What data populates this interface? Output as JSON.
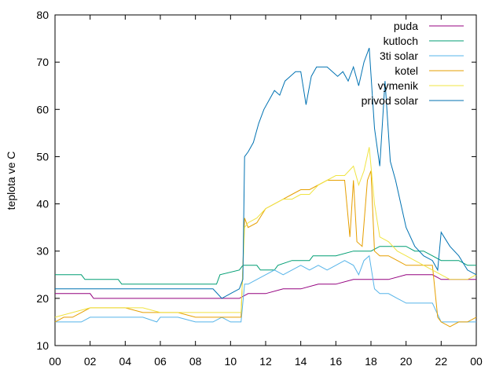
{
  "chart_data": {
    "type": "line",
    "title": "",
    "xlabel": "",
    "ylabel": "teplota ve C",
    "xlim": [
      0,
      24
    ],
    "ylim": [
      10,
      80
    ],
    "x_ticks": [
      "00",
      "02",
      "04",
      "06",
      "08",
      "10",
      "12",
      "14",
      "16",
      "18",
      "20",
      "22",
      "00"
    ],
    "y_ticks": [
      10,
      20,
      30,
      40,
      50,
      60,
      70,
      80
    ],
    "grid": false,
    "legend_position": "top-right",
    "series": [
      {
        "name": "puda",
        "color": "#94007f",
        "x": [
          0,
          1,
          2,
          2.2,
          3.5,
          3.7,
          9.5,
          10,
          10.5,
          11,
          12,
          13,
          14,
          15,
          16,
          17,
          18,
          19,
          20,
          21,
          21.5,
          22,
          22.5,
          23,
          24
        ],
        "y": [
          21,
          21,
          21,
          20,
          20,
          20,
          20,
          20,
          20,
          21,
          21,
          22,
          22,
          23,
          23,
          24,
          24,
          24,
          25,
          25,
          25,
          24,
          24,
          24,
          24
        ]
      },
      {
        "name": "kutloch",
        "color": "#009e73",
        "x": [
          0,
          1.5,
          1.7,
          2.3,
          2.5,
          3.6,
          3.8,
          5.8,
          6,
          9.2,
          9.4,
          10.5,
          10.7,
          11.5,
          11.7,
          12.5,
          12.7,
          13.5,
          14.5,
          14.7,
          16,
          17,
          18,
          18.5,
          19,
          19.5,
          20,
          20.5,
          21,
          21.5,
          22,
          22.5,
          23,
          23.5,
          24
        ],
        "y": [
          25,
          25,
          24,
          24,
          24,
          24,
          23,
          23,
          23,
          23,
          25,
          26,
          27,
          27,
          26,
          26,
          27,
          28,
          28,
          29,
          29,
          30,
          30,
          31,
          31,
          31,
          31,
          30,
          30,
          29,
          28,
          28,
          28,
          27,
          27
        ]
      },
      {
        "name": "3ti solar",
        "color": "#56b4e9",
        "x": [
          0,
          0.5,
          1,
          1.5,
          2,
          3,
          4,
          5,
          5.8,
          6,
          6.2,
          7,
          8,
          9,
          9.5,
          10,
          10.6,
          10.8,
          11,
          11.5,
          12,
          12.5,
          13,
          13.5,
          14,
          14.5,
          15,
          15.5,
          16,
          16.5,
          17,
          17.3,
          17.6,
          17.9,
          18.2,
          18.5,
          19,
          19.5,
          20,
          20.5,
          21,
          21.5,
          22,
          22.5,
          23,
          23.5,
          24
        ],
        "y": [
          15,
          15,
          15,
          15,
          16,
          16,
          16,
          16,
          15,
          16,
          16,
          16,
          15,
          15,
          16,
          15,
          15,
          23,
          23,
          24,
          25,
          26,
          25,
          26,
          27,
          26,
          27,
          26,
          27,
          28,
          27,
          25,
          28,
          29,
          22,
          21,
          21,
          20,
          19,
          19,
          19,
          19,
          15,
          15,
          15,
          15,
          15
        ]
      },
      {
        "name": "kotel",
        "color": "#e69f00",
        "x": [
          0,
          0.5,
          1,
          1.5,
          2,
          3,
          4,
          5,
          6,
          7,
          8,
          9,
          10,
          10.6,
          10.8,
          11,
          11.5,
          12,
          12.5,
          13,
          13.5,
          14,
          14.5,
          15,
          15.5,
          16,
          16.5,
          16.8,
          17,
          17.2,
          17.5,
          17.8,
          18,
          18.2,
          18.5,
          19,
          19.5,
          20,
          20.5,
          21,
          21.5,
          21.8,
          22,
          22.5,
          23,
          23.5,
          24
        ],
        "y": [
          15,
          16,
          16,
          17,
          18,
          18,
          18,
          17,
          17,
          17,
          16,
          16,
          16,
          16,
          37,
          35,
          36,
          39,
          40,
          41,
          42,
          43,
          43,
          44,
          45,
          45,
          45,
          33,
          45,
          32,
          31,
          45,
          47,
          30,
          29,
          29,
          28,
          27,
          27,
          27,
          27,
          16,
          15,
          14,
          15,
          15,
          16
        ]
      },
      {
        "name": "vymenik",
        "color": "#f0e442",
        "x": [
          0,
          1,
          2,
          3,
          4,
          5,
          6,
          7,
          8,
          9,
          10,
          10.6,
          10.8,
          11,
          11.5,
          12,
          12.5,
          13,
          13.5,
          14,
          14.5,
          15,
          15.5,
          16,
          16.5,
          17,
          17.3,
          17.6,
          17.9,
          18.2,
          18.5,
          19,
          19.5,
          20,
          20.5,
          21,
          21.5,
          22,
          22.5,
          23,
          23.5,
          24
        ],
        "y": [
          16,
          17,
          18,
          18,
          18,
          18,
          17,
          17,
          17,
          17,
          17,
          17,
          35,
          36,
          37,
          39,
          40,
          41,
          41,
          42,
          42,
          44,
          45,
          46,
          46,
          48,
          44,
          47,
          52,
          40,
          33,
          32,
          30,
          29,
          28,
          27,
          26,
          25,
          24,
          24,
          24,
          25
        ]
      },
      {
        "name": "privod solar",
        "color": "#0072b2",
        "x": [
          0,
          1,
          2,
          3,
          4,
          5,
          6,
          7,
          8,
          9,
          9.5,
          10,
          10.5,
          10.7,
          10.8,
          11,
          11.3,
          11.6,
          11.9,
          12.2,
          12.5,
          12.8,
          13.1,
          13.4,
          13.7,
          14,
          14.3,
          14.6,
          14.9,
          15.2,
          15.5,
          15.8,
          16.1,
          16.4,
          16.7,
          17,
          17.3,
          17.6,
          17.9,
          18.2,
          18.5,
          18.8,
          19.1,
          19.4,
          19.7,
          20,
          20.5,
          21,
          21.5,
          21.8,
          22,
          22.5,
          23,
          23.5,
          24
        ],
        "y": [
          22,
          22,
          22,
          22,
          22,
          22,
          22,
          22,
          22,
          22,
          20,
          21,
          22,
          24,
          50,
          51,
          53,
          57,
          60,
          62,
          64,
          63,
          66,
          67,
          68,
          68,
          61,
          67,
          69,
          69,
          69,
          68,
          67,
          68,
          66,
          69,
          65,
          70,
          73,
          56,
          48,
          66,
          49,
          45,
          40,
          35,
          31,
          29,
          28,
          26,
          34,
          31,
          29,
          26,
          25
        ]
      }
    ]
  }
}
